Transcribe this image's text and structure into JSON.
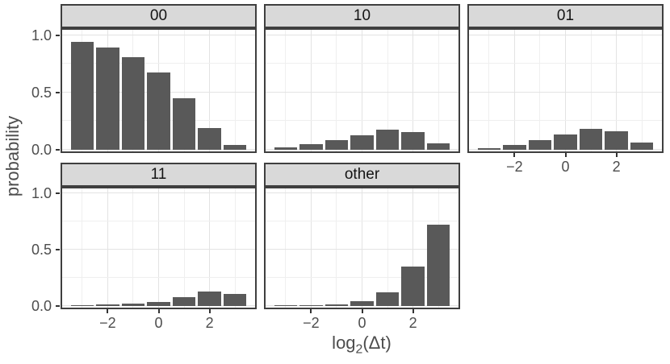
{
  "figure": {
    "background": "#ffffff"
  },
  "axis": {
    "y_title": "probability",
    "x_title_pre": "log",
    "x_title_sub": "2",
    "x_title_post": "(Δt)",
    "y_tick_labels": [
      "1.0",
      "0.5",
      "0.0"
    ],
    "y_tick_values": [
      1.0,
      0.5,
      0.0
    ],
    "x_tick_labels": [
      "−2",
      "0",
      "2"
    ],
    "x_tick_values": [
      -2,
      0,
      2
    ]
  },
  "colors": {
    "bar_fill": "#595959",
    "strip_bg": "#d9d9d9",
    "panel_border": "#3f3f3f",
    "grid_major": "#e3e3e3",
    "grid_minor": "#efefef",
    "axis_text": "#4d4d4d",
    "strip_text": "#141414",
    "tick_mark": "#333333"
  },
  "chart_data": {
    "type": "bar",
    "title": "",
    "xlabel": "log2(Δt)",
    "ylabel": "probability",
    "categories": [
      -3,
      -2,
      -1,
      0,
      1,
      2,
      3
    ],
    "facets": [
      {
        "label": "00",
        "values": [
          0.94,
          0.89,
          0.81,
          0.67,
          0.45,
          0.19,
          0.04
        ]
      },
      {
        "label": "10",
        "values": [
          0.02,
          0.045,
          0.08,
          0.125,
          0.175,
          0.155,
          0.055
        ]
      },
      {
        "label": "01",
        "values": [
          0.015,
          0.04,
          0.08,
          0.13,
          0.18,
          0.16,
          0.06
        ]
      },
      {
        "label": "11",
        "values": [
          0.004,
          0.01,
          0.02,
          0.035,
          0.075,
          0.13,
          0.105
        ]
      },
      {
        "label": "other",
        "values": [
          0.003,
          0.008,
          0.015,
          0.04,
          0.12,
          0.35,
          0.72
        ]
      }
    ],
    "xlim": [
      -3.85,
      3.85
    ],
    "ylim": [
      -0.03,
      1.06
    ],
    "x_gridlines": [
      -3,
      -2,
      -1,
      0,
      1,
      2,
      3
    ],
    "y_major_gridlines": [
      0,
      0.5,
      1.0
    ],
    "y_minor_gridlines": [
      0.25,
      0.75
    ],
    "bar_width": 0.9,
    "grid": true,
    "legend": false
  }
}
